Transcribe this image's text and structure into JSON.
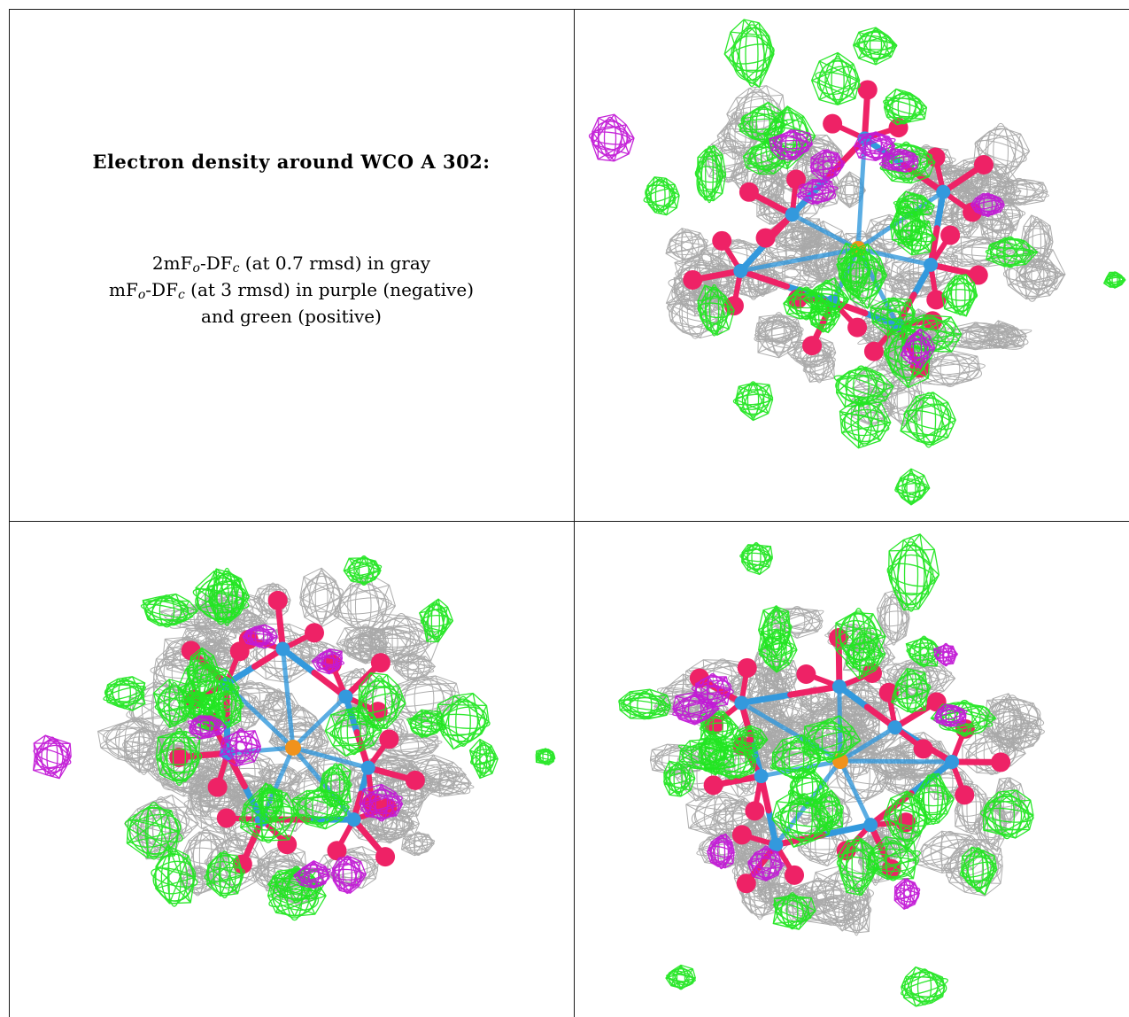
{
  "figure": {
    "caption_title": "Electron density around WCO A 302:",
    "line1": {
      "pre": "2mF",
      "sub1": "o",
      "mid": "-DF",
      "sub2": "c",
      "post": " (at 0.7 rmsd) in gray"
    },
    "line2": {
      "pre": "mF",
      "sub1": "o",
      "mid": "-DF",
      "sub2": "c",
      "post": " (at 3 rmsd) in purple (negative)"
    },
    "line3": "and green (positive)"
  },
  "panels": [
    {
      "id": "top-right",
      "icon": "electron-density-map"
    },
    {
      "id": "bottom-left",
      "icon": "electron-density-map"
    },
    {
      "id": "bottom-right",
      "icon": "electron-density-map"
    }
  ],
  "colors": {
    "mesh_2fofc": "#a9a9a9",
    "mesh_positive": "#22e622",
    "mesh_negative": "#c21ad6",
    "tungsten_atom": "#3399dd",
    "oxygen_atom": "#ee2266",
    "phosphorus_atom": "#f0921c"
  }
}
